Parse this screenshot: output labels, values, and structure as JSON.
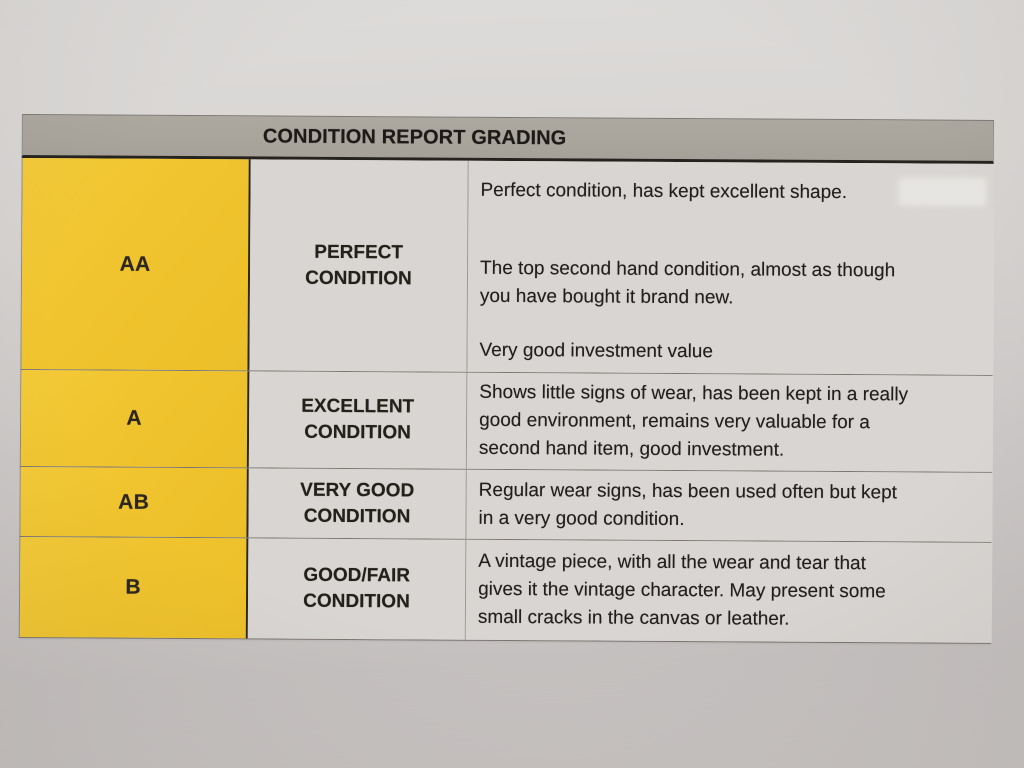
{
  "table": {
    "title": "CONDITION REPORT GRADING",
    "rows": [
      {
        "grade": "AA",
        "condition_lines": [
          "PERFECT",
          "CONDITION"
        ],
        "paragraphs": [
          [
            "Perfect condition, has kept excellent shape."
          ],
          [
            "The top second hand condition, almost as though",
            "you have bought it brand new."
          ],
          [
            "Very good investment value"
          ]
        ]
      },
      {
        "grade": "A",
        "condition_lines": [
          "EXCELLENT",
          "CONDITION"
        ],
        "paragraphs": [
          [
            "Shows little signs of wear, has been kept in a really",
            "good environment, remains very valuable for a",
            "second hand item, good investment."
          ]
        ]
      },
      {
        "grade": "AB",
        "condition_lines": [
          "VERY GOOD",
          "CONDITION"
        ],
        "paragraphs": [
          [
            "Regular wear signs, has been used often but kept",
            "in a very good condition."
          ]
        ]
      },
      {
        "grade": "B",
        "condition_lines": [
          "GOOD/FAIR",
          "CONDITION"
        ],
        "paragraphs": [
          [
            "A vintage piece, with all the wear and tear that",
            "gives it the vintage character. May present some",
            "small cracks in the canvas or leather."
          ]
        ]
      }
    ]
  },
  "colors": {
    "grade_column_yellow": "#f0c42e",
    "header_gray": "#a9a59d",
    "cell_gray": "#d8d5d2",
    "paper_gray": "#c9c5c4",
    "text_dark": "#211e1c"
  }
}
